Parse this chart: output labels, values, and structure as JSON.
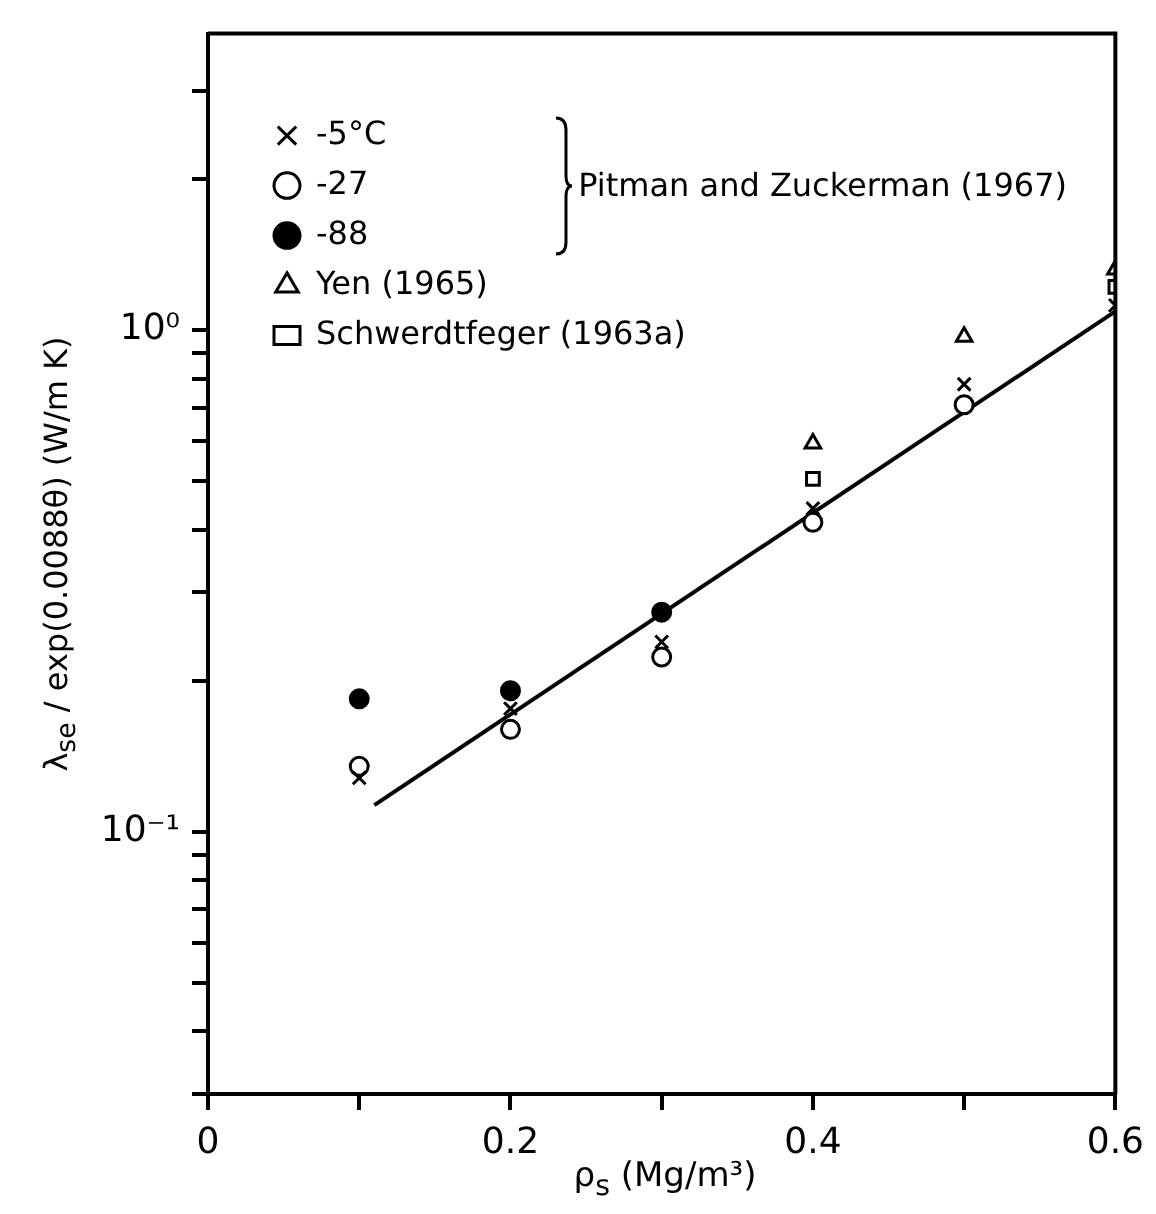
{
  "chart_data": {
    "type": "scatter",
    "xlabel": "ρ$_{s}$ (Mg/m³)",
    "ylabel": "λ$_{se}$ / exp(0.0088θ)   (W/m K)",
    "annotations": [
      "Pitman and Zuckerman (1967)"
    ],
    "xlim": [
      0,
      0.6
    ],
    "xticks": [
      0,
      {
        "value": 0.1,
        "label": null
      },
      0.2,
      {
        "value": 0.3,
        "label": null
      },
      0.4,
      {
        "value": 0.5,
        "label": null
      },
      0.6
    ],
    "ylim": [
      0.03,
      3.9
    ],
    "log": "y",
    "yticks": [
      {
        "value": 0.03,
        "label": null
      },
      {
        "value": 0.04,
        "label": null
      },
      {
        "value": 0.05,
        "label": null
      },
      {
        "value": 0.06,
        "label": null
      },
      {
        "value": 0.07,
        "label": null
      },
      {
        "value": 0.08,
        "label": null
      },
      {
        "value": 0.09,
        "label": null
      },
      {
        "value": 0.1,
        "label": "10⁻¹"
      },
      {
        "value": 0.2,
        "label": null
      },
      {
        "value": 0.3,
        "label": null
      },
      {
        "value": 0.4,
        "label": null
      },
      {
        "value": 0.5,
        "label": null
      },
      {
        "value": 0.6,
        "label": null
      },
      {
        "value": 0.7,
        "label": null
      },
      {
        "value": 0.8,
        "label": null
      },
      {
        "value": 0.9,
        "label": null
      },
      {
        "value": 1,
        "label": "10⁰"
      },
      {
        "value": 2,
        "label": null
      },
      {
        "value": 3,
        "label": null
      }
    ],
    "legend": "top left",
    "series": [
      {
        "name": "-5°C",
        "color": "#000000",
        "marker": "cross",
        "x": [
          0.1,
          0.2,
          0.3,
          0.4,
          0.5,
          0.6
        ],
        "values": [
          0.128,
          0.176,
          0.239,
          0.441,
          0.78,
          1.12
        ]
      },
      {
        "name": "-27",
        "color": "#ffffff",
        "marker": "circle",
        "x": [
          0.1,
          0.2,
          0.3,
          0.4,
          0.5
        ],
        "values": [
          0.135,
          0.16,
          0.223,
          0.414,
          0.71
        ]
      },
      {
        "name": "-88",
        "color": "#000000",
        "marker": "circle",
        "x": [
          0.1,
          0.2,
          0.3
        ],
        "values": [
          0.184,
          0.191,
          0.274
        ]
      },
      {
        "name": "Yen (1965)",
        "color": "#ffffff",
        "marker": "triangle",
        "x": [
          0.4,
          0.5,
          0.6
        ],
        "values": [
          0.594,
          0.97,
          1.32
        ]
      },
      {
        "name": "Schwerdtfeger (1963a)",
        "color": "#ffffff",
        "marker": "square",
        "x": [
          0.4,
          0.6
        ],
        "values": [
          0.505,
          1.22
        ]
      },
      {
        "type": "line",
        "color": "#000000",
        "marker": "none",
        "line_style": "solid",
        "x": [
          0.11,
          0.6
        ],
        "values": [
          0.113,
          1.09
        ]
      }
    ]
  }
}
